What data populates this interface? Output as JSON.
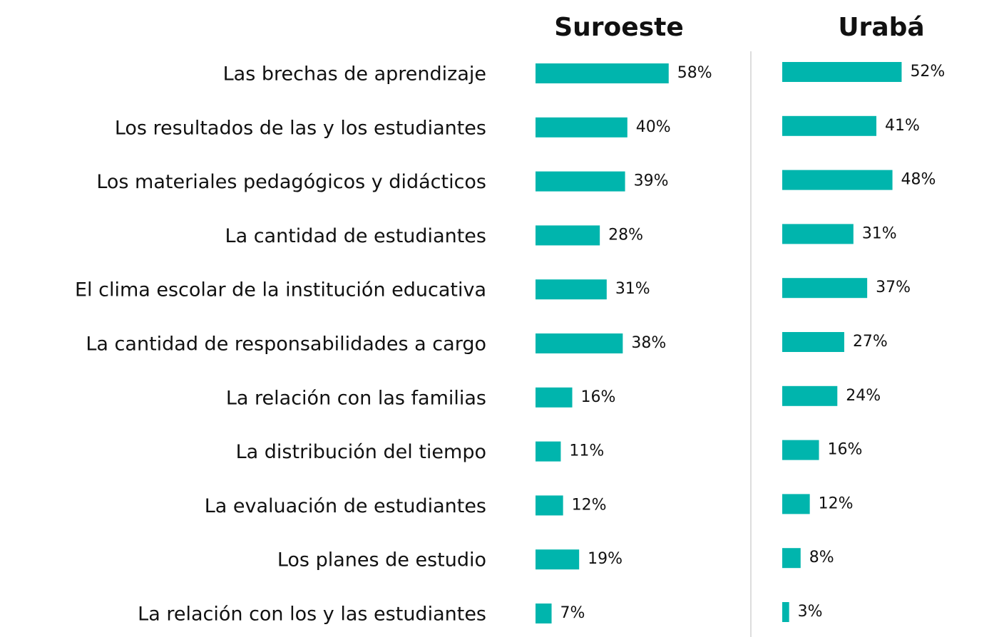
{
  "chart_data": {
    "type": "bar",
    "categories": [
      "Las brechas de aprendizaje",
      "Los resultados de las y los estudiantes",
      "Los materiales pedagógicos y didácticos",
      "La cantidad de estudiantes",
      "El clima escolar de la institución educativa",
      "La cantidad de responsabilidades a cargo",
      "La relación con las familias",
      "La distribución del tiempo",
      "La evaluación de estudiantes",
      "Los planes de estudio",
      "La relación con los y las estudiantes"
    ],
    "series": [
      {
        "name": "Suroeste",
        "color": "#00b5ad",
        "values": [
          58,
          40,
          39,
          28,
          31,
          38,
          16,
          11,
          12,
          19,
          7
        ],
        "value_labels": [
          "58%",
          "40%",
          "39%",
          "28%",
          "31%",
          "38%",
          "16%",
          "11%",
          "12%",
          "19%",
          "7%"
        ]
      },
      {
        "name": "Urabá",
        "color": "#00b5ad",
        "values": [
          52,
          41,
          48,
          31,
          37,
          27,
          24,
          16,
          12,
          8,
          3
        ],
        "value_labels": [
          "52%",
          "41%",
          "48%",
          "31%",
          "37%",
          "27%",
          "24%",
          "16%",
          "12%",
          "8%",
          "3%"
        ]
      }
    ]
  }
}
